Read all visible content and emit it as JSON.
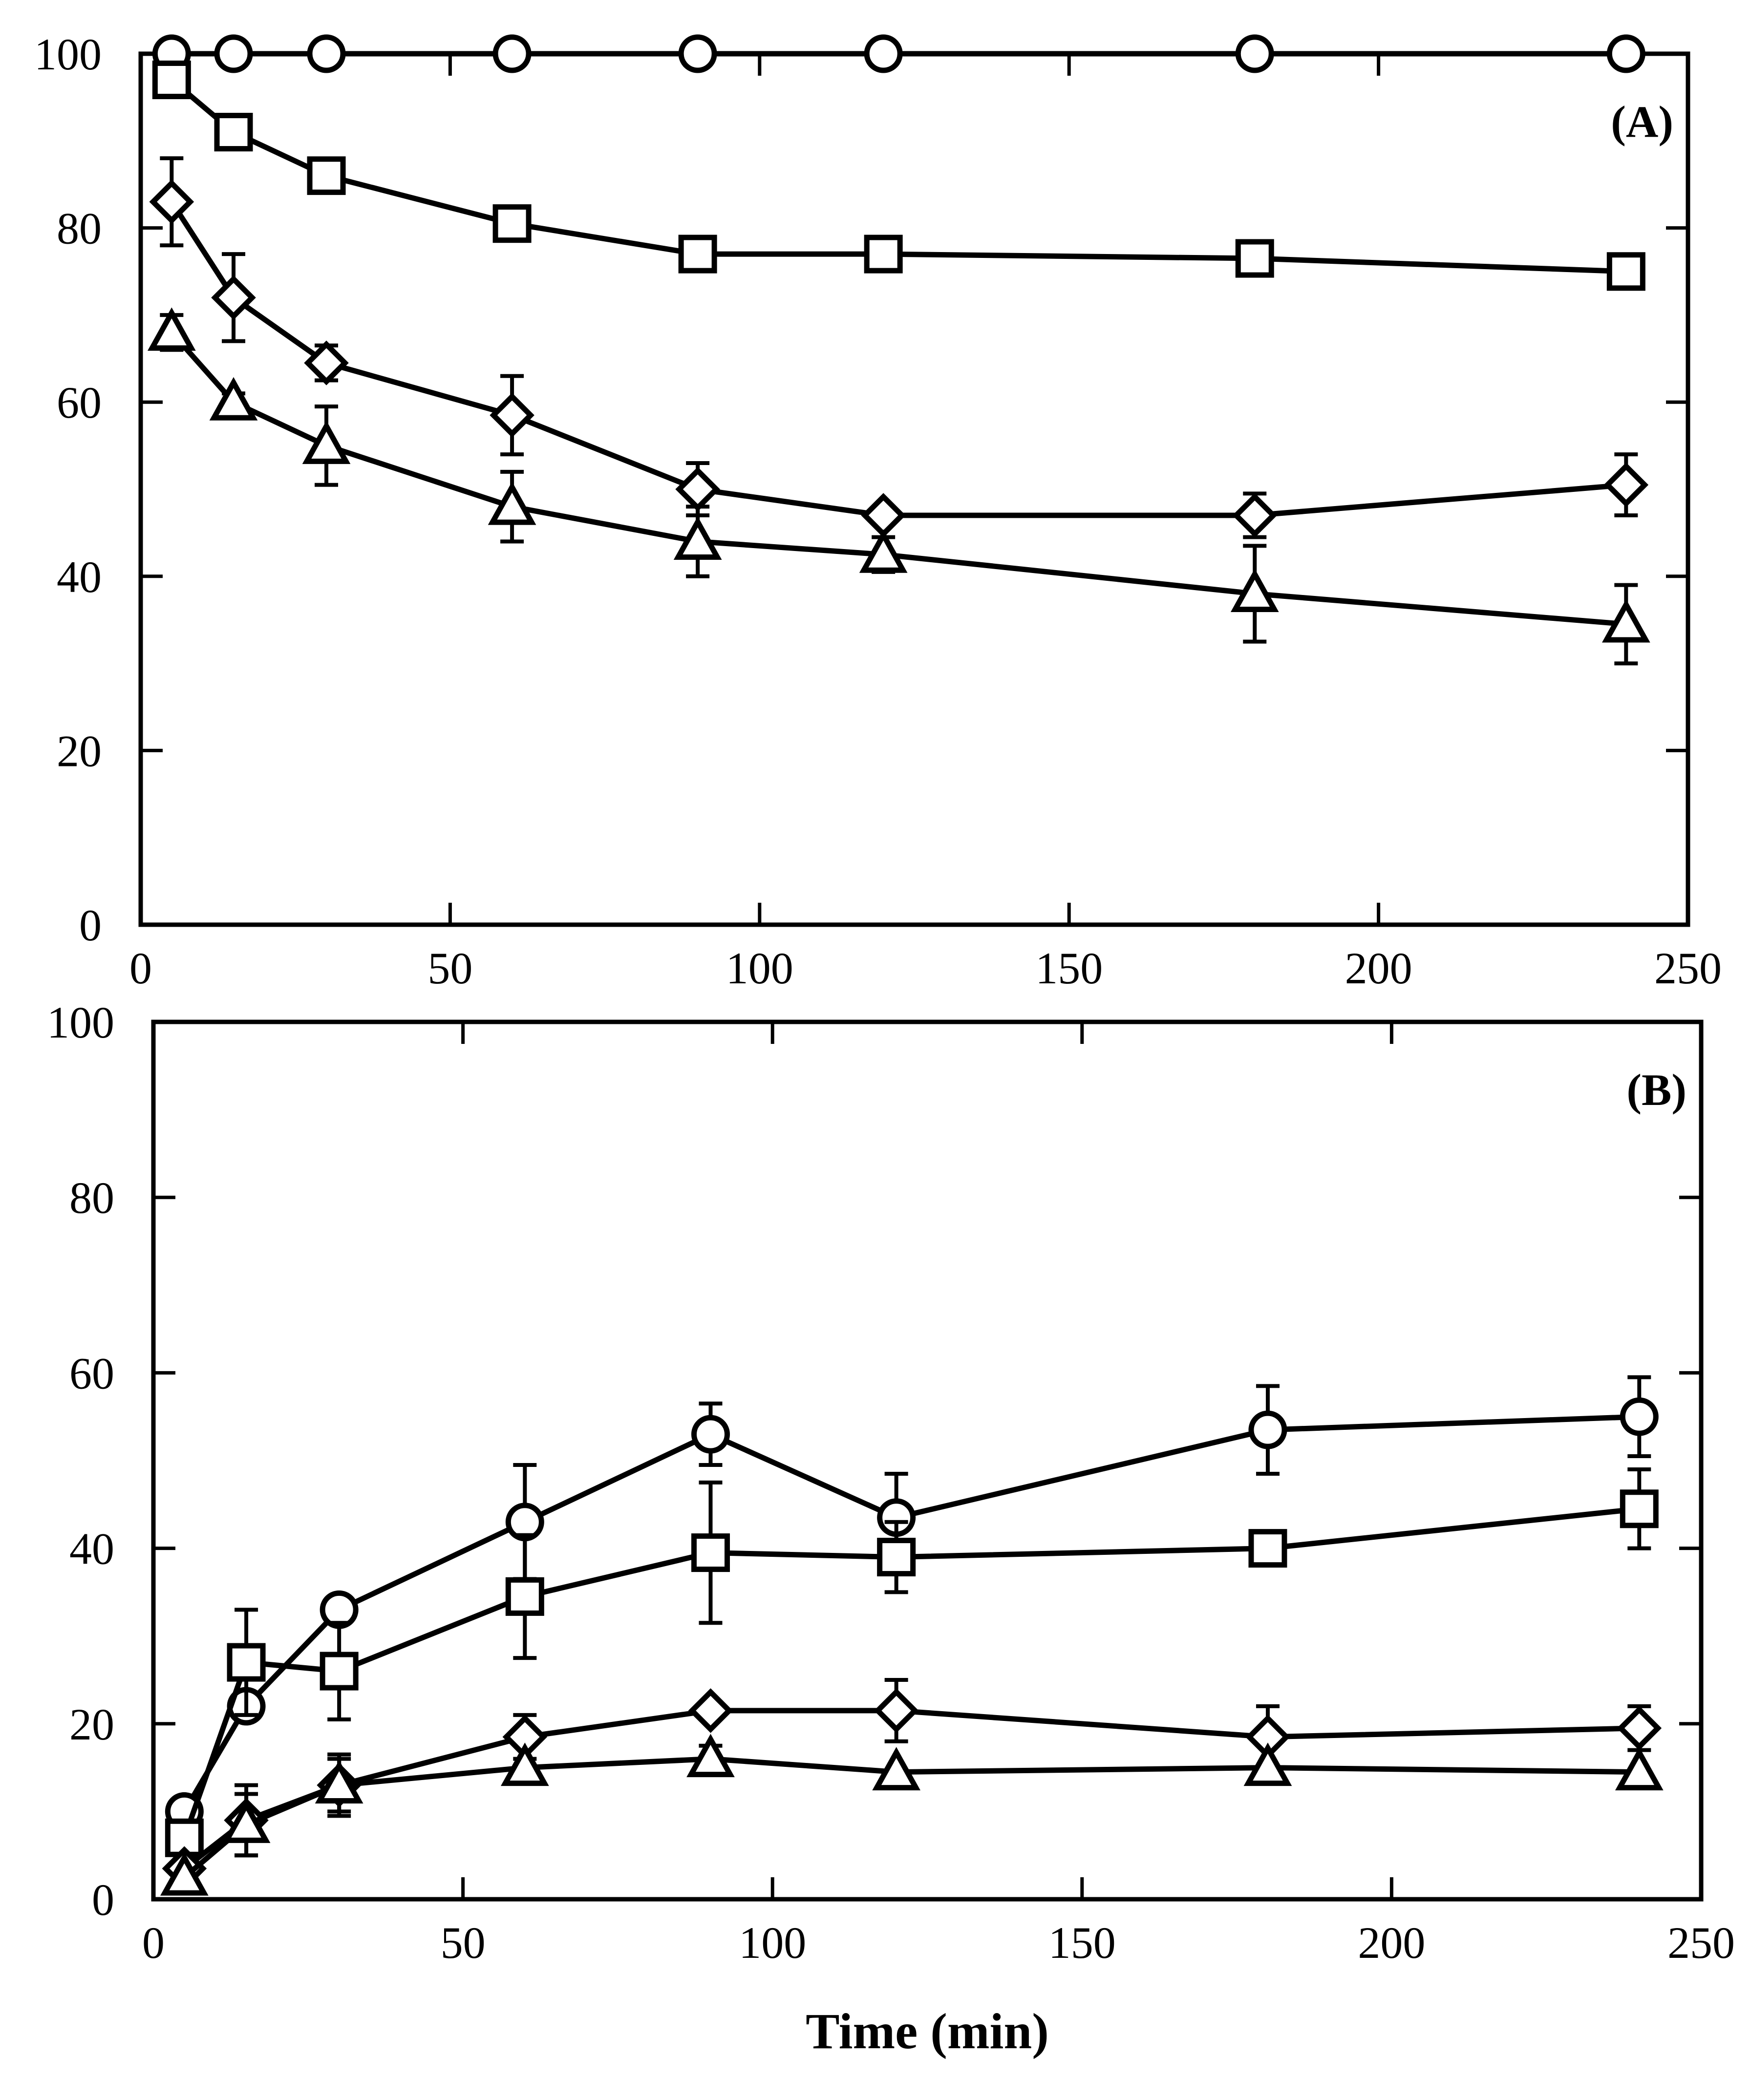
{
  "chart_data": [
    {
      "type": "line",
      "panel_label": "(A)",
      "title": "",
      "xlabel": "",
      "ylabel": "",
      "xlim": [
        0,
        250
      ],
      "ylim": [
        0,
        100
      ],
      "x_ticks": [
        0,
        50,
        100,
        150,
        200,
        250
      ],
      "y_ticks": [
        0,
        20,
        40,
        60,
        80,
        100
      ],
      "grid": false,
      "x": [
        5,
        15,
        30,
        60,
        90,
        120,
        180,
        240
      ],
      "series": [
        {
          "name": "circle",
          "marker": "circle",
          "values": [
            100,
            100,
            100,
            100,
            100,
            100,
            100,
            100
          ],
          "errors": [
            0,
            0,
            0,
            0,
            0,
            0,
            0,
            0
          ]
        },
        {
          "name": "square",
          "marker": "square",
          "values": [
            97,
            91,
            86,
            80.5,
            77,
            77,
            76.5,
            75
          ],
          "errors": [
            0,
            0,
            0,
            0,
            1,
            0,
            1.5,
            1.5
          ]
        },
        {
          "name": "diamond",
          "marker": "diamond",
          "values": [
            83,
            72,
            64.5,
            58.5,
            50,
            47,
            47,
            50.5
          ],
          "errors": [
            5,
            5,
            2,
            4.5,
            3,
            1,
            2.5,
            3.5
          ]
        },
        {
          "name": "triangle",
          "marker": "triangle",
          "values": [
            68,
            60,
            55,
            48,
            44,
            42.5,
            38,
            34.5
          ],
          "errors": [
            2,
            1,
            4.5,
            4,
            4,
            2,
            5.5,
            4.5
          ]
        }
      ]
    },
    {
      "type": "line",
      "panel_label": "(B)",
      "title": "",
      "xlabel": "Time (min)",
      "ylabel": "",
      "xlim": [
        0,
        250
      ],
      "ylim": [
        0,
        100
      ],
      "x_ticks": [
        0,
        50,
        100,
        150,
        200,
        250
      ],
      "y_ticks": [
        0,
        20,
        40,
        60,
        80,
        100
      ],
      "grid": false,
      "x": [
        5,
        15,
        30,
        60,
        90,
        120,
        180,
        240
      ],
      "series": [
        {
          "name": "circle",
          "marker": "circle",
          "values": [
            10,
            22,
            33,
            43,
            53,
            43.5,
            53.5,
            55
          ],
          "errors": [
            0,
            0,
            1.5,
            6.5,
            3.5,
            5,
            5,
            4.5
          ]
        },
        {
          "name": "square",
          "marker": "square",
          "values": [
            7,
            27,
            26,
            34.5,
            39.5,
            39,
            40,
            44.5
          ],
          "errors": [
            0,
            6,
            5.5,
            7,
            8,
            4,
            0,
            4.5
          ]
        },
        {
          "name": "diamond",
          "marker": "diamond",
          "values": [
            3.5,
            9,
            13,
            18.5,
            21.5,
            21.5,
            18.5,
            19.5
          ],
          "errors": [
            0,
            4,
            3.5,
            2.5,
            0,
            3.5,
            3.5,
            2.5
          ]
        },
        {
          "name": "triangle",
          "marker": "triangle",
          "values": [
            2.5,
            8.5,
            13,
            15,
            16,
            14.5,
            15,
            14.5
          ],
          "errors": [
            0,
            3.5,
            3,
            0,
            1.5,
            0,
            0,
            0
          ]
        }
      ]
    }
  ]
}
